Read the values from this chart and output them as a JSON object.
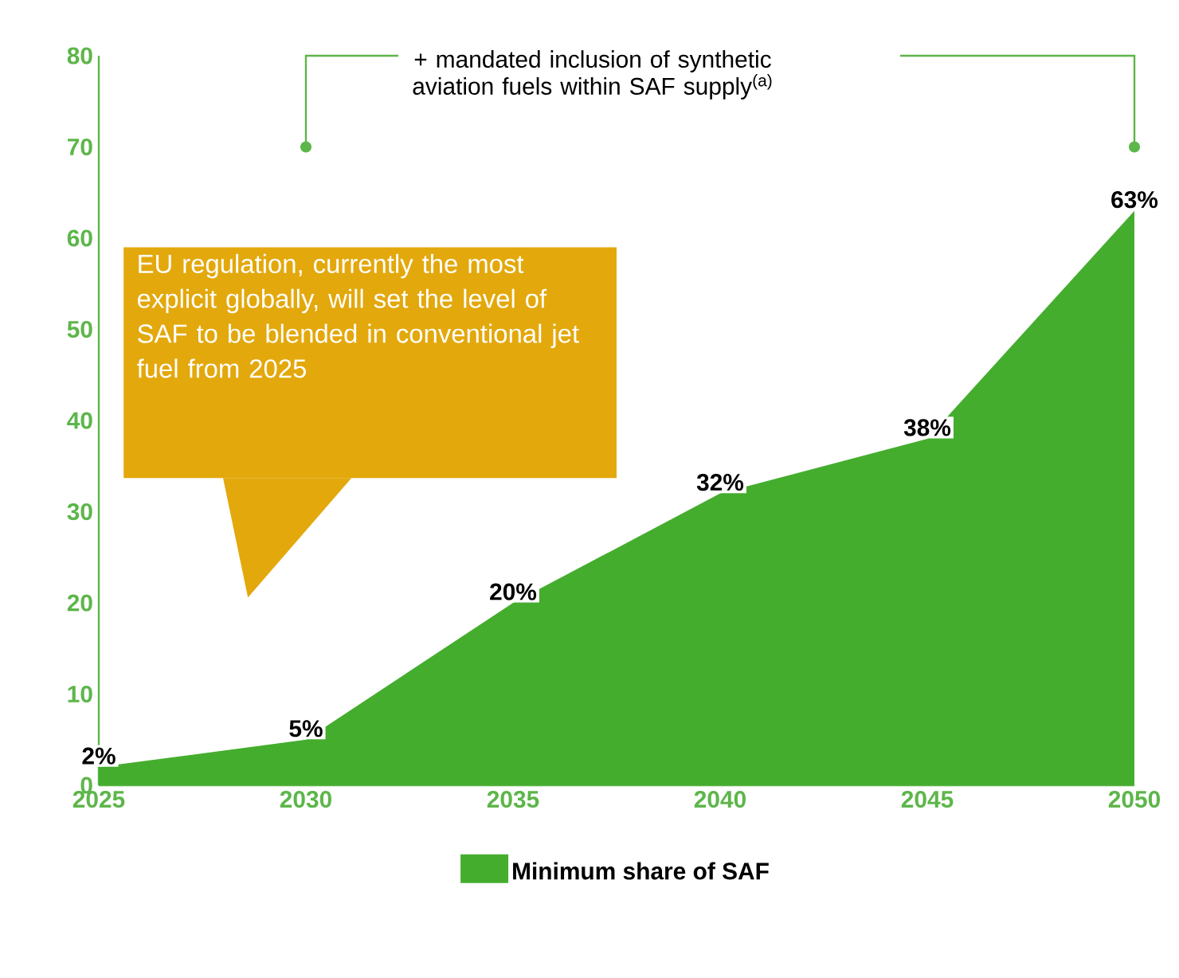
{
  "chart_data": {
    "type": "area",
    "x": [
      2025,
      2030,
      2035,
      2040,
      2045,
      2050
    ],
    "series": [
      {
        "name": "Minimum share of SAF",
        "color": "#45ad2e",
        "values": [
          2,
          5,
          20,
          32,
          38,
          63
        ],
        "value_labels": [
          "2%",
          "5%",
          "20%",
          "32%",
          "38%",
          "63%"
        ]
      }
    ],
    "xlim": [
      2025,
      2050
    ],
    "xticks": [
      2025,
      2030,
      2035,
      2040,
      2045,
      2050
    ],
    "ylim": [
      0,
      80
    ],
    "yticks": [
      0,
      10,
      20,
      30,
      40,
      50,
      60,
      70,
      80
    ],
    "grid": false,
    "legend": "bottom",
    "annotations": [
      "+ mandated inclusion of synthetic aviation fuels within SAF supply$^{(a)}$",
      "EU regulation, currently the most explicit globally, will set the level of SAF to be blended in conventional jet fuel from 2025"
    ]
  }
}
